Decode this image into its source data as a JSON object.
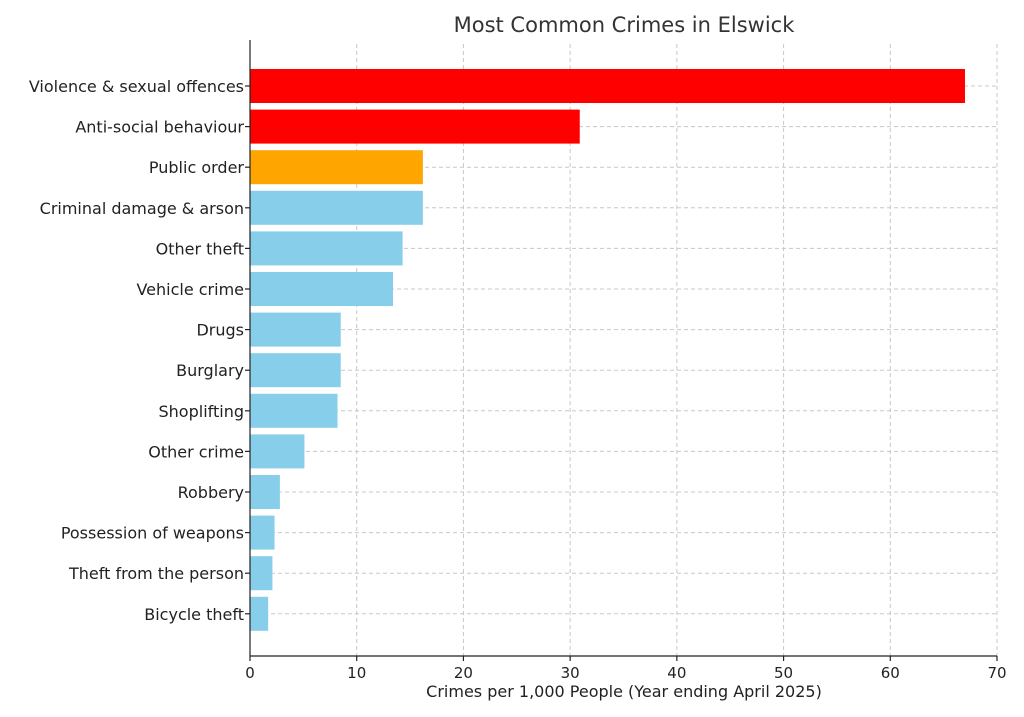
{
  "chart_data": {
    "type": "bar",
    "orientation": "horizontal",
    "title": "Most Common Crimes in Elswick",
    "xlabel": "Crimes per 1,000 People (Year ending April 2025)",
    "ylabel": "",
    "xlim": [
      0,
      70
    ],
    "xticks": [
      0,
      10,
      20,
      30,
      40,
      50,
      60,
      70
    ],
    "grid": true,
    "categories": [
      "Violence & sexual offences",
      "Anti-social behaviour",
      "Public order",
      "Criminal damage & arson",
      "Other theft",
      "Vehicle crime",
      "Drugs",
      "Burglary",
      "Shoplifting",
      "Other crime",
      "Robbery",
      "Possession of weapons",
      "Theft from the person",
      "Bicycle theft"
    ],
    "values": [
      67.0,
      30.9,
      16.2,
      16.2,
      14.3,
      13.4,
      8.5,
      8.5,
      8.2,
      5.1,
      2.8,
      2.3,
      2.1,
      1.7
    ],
    "bar_colors": [
      "#ff0000",
      "#ff0000",
      "#ffa500",
      "#87ceeb",
      "#87ceeb",
      "#87ceeb",
      "#87ceeb",
      "#87ceeb",
      "#87ceeb",
      "#87ceeb",
      "#87ceeb",
      "#87ceeb",
      "#87ceeb",
      "#87ceeb"
    ]
  }
}
